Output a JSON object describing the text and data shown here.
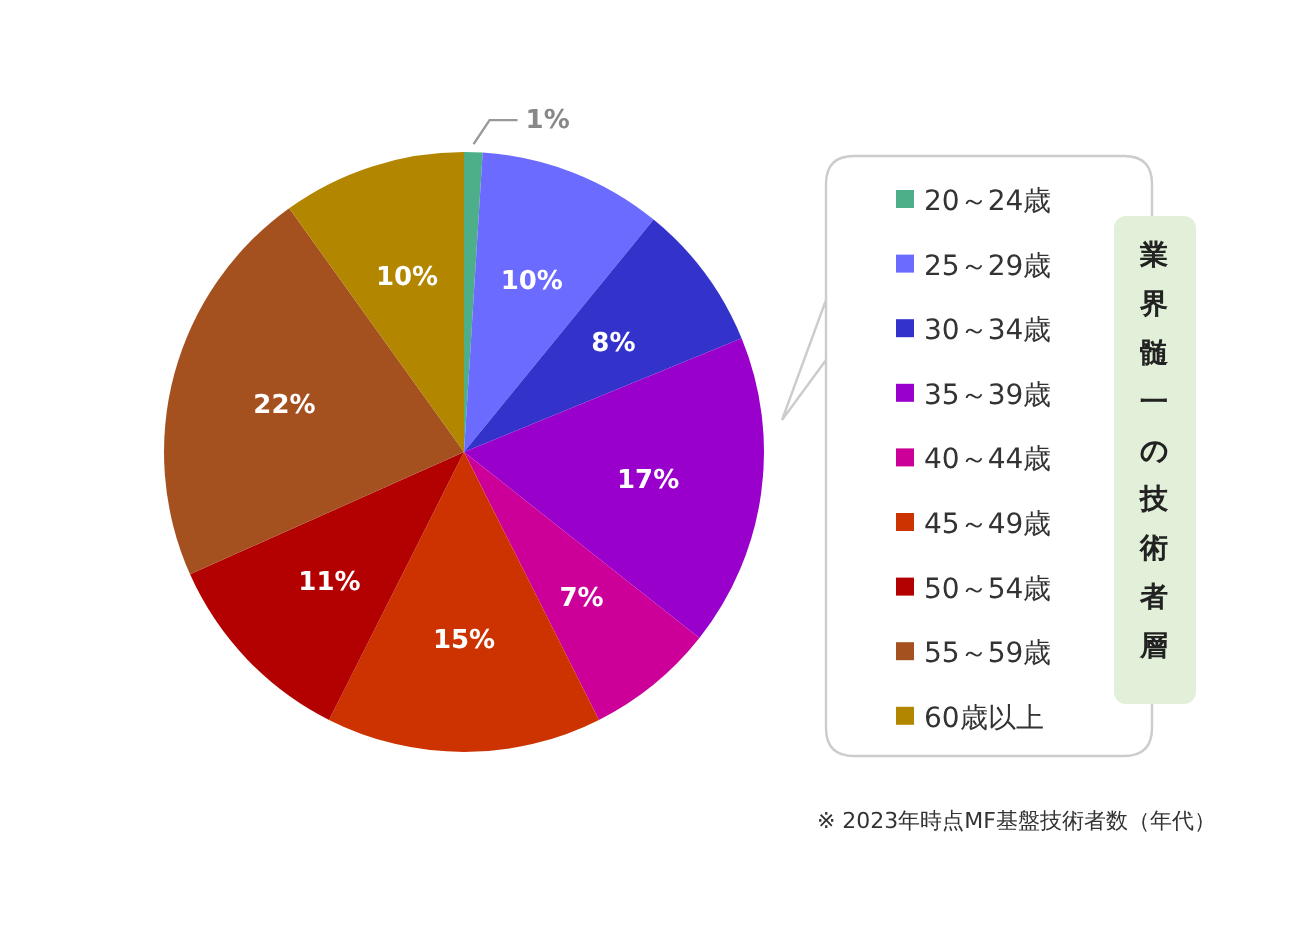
{
  "chart_data": {
    "type": "pie",
    "categories": [
      "20～24歳",
      "25～29歳",
      "30～34歳",
      "35～39歳",
      "40～44歳",
      "45～49歳",
      "50～54歳",
      "55～59歳",
      "60歳以上"
    ],
    "values": [
      1,
      10,
      8,
      17,
      7,
      15,
      11,
      22,
      10
    ],
    "value_labels": [
      "1%",
      "10%",
      "8%",
      "17%",
      "7%",
      "15%",
      "11%",
      "22%",
      "10%"
    ],
    "colors": [
      "#4daf8a",
      "#6b6bff",
      "#3333cc",
      "#9900cc",
      "#cc0099",
      "#cc3300",
      "#b30000",
      "#a4511f",
      "#b38600"
    ],
    "legend": "right",
    "legend_title": "業界髄一の技術者層",
    "annotations": [
      "※ 2023年時点MF基盤技術者数（年代）"
    ]
  }
}
